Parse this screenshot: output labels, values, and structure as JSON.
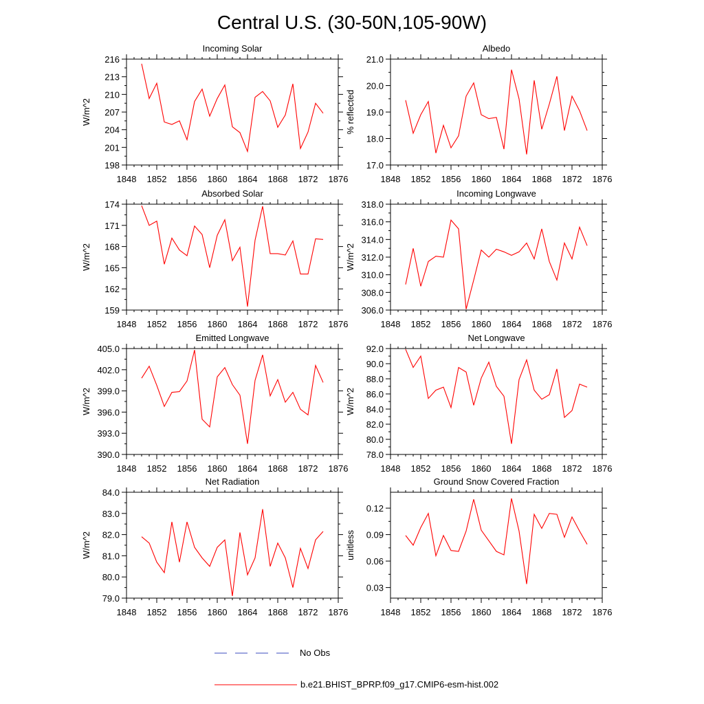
{
  "title": "Central U.S. (30-50N,105-90W)",
  "legend": {
    "items": [
      {
        "label": "No Obs",
        "color": "#3b4bbf",
        "style": "dashed"
      },
      {
        "label": "b.e21.BHIST_BPRP.f09_g17.CMIP6-esm-hist.002",
        "color": "#ff0000",
        "style": "solid"
      }
    ]
  },
  "chart_data": [
    {
      "type": "line",
      "title": "Incoming Solar",
      "ylabel": "W/m^2",
      "xlabel": "",
      "xlim": [
        1848,
        1876
      ],
      "xticks": [
        "1848",
        "1852",
        "1856",
        "1860",
        "1864",
        "1868",
        "1872",
        "1876"
      ],
      "ylim": [
        198,
        216
      ],
      "yticks": [
        "198",
        "201",
        "204",
        "207",
        "210",
        "213",
        "216"
      ],
      "x": [
        1850,
        1851,
        1852,
        1853,
        1854,
        1855,
        1856,
        1857,
        1858,
        1859,
        1860,
        1861,
        1862,
        1863,
        1864,
        1865,
        1866,
        1867,
        1868,
        1869,
        1870,
        1871,
        1872,
        1873,
        1874
      ],
      "series": [
        {
          "name": "b.e21.BHIST_BPRP.f09_g17.CMIP6-esm-hist.002",
          "color": "#ff0000",
          "values": [
            215.2,
            209.3,
            211.9,
            205.3,
            204.9,
            205.5,
            202.3,
            208.8,
            210.9,
            206.3,
            209.3,
            211.6,
            204.5,
            203.5,
            200.3,
            209.5,
            210.5,
            208.9,
            204.4,
            206.5,
            211.8,
            200.8,
            203.6,
            208.5,
            206.8
          ]
        }
      ]
    },
    {
      "type": "line",
      "title": "Albedo",
      "ylabel": "% reflected",
      "xlabel": "",
      "xlim": [
        1848,
        1876
      ],
      "xticks": [
        "1848",
        "1852",
        "1856",
        "1860",
        "1864",
        "1868",
        "1872",
        "1876"
      ],
      "ylim": [
        17.0,
        21.0
      ],
      "yticks": [
        "17.0",
        "18.0",
        "19.0",
        "20.0",
        "21.0"
      ],
      "x": [
        1850,
        1851,
        1852,
        1853,
        1854,
        1855,
        1856,
        1857,
        1858,
        1859,
        1860,
        1861,
        1862,
        1863,
        1864,
        1865,
        1866,
        1867,
        1868,
        1869,
        1870,
        1871,
        1872,
        1873,
        1874
      ],
      "series": [
        {
          "name": "b.e21.BHIST_BPRP.f09_g17.CMIP6-esm-hist.002",
          "color": "#ff0000",
          "values": [
            19.45,
            18.2,
            18.9,
            19.4,
            17.45,
            18.5,
            17.65,
            18.1,
            19.6,
            20.1,
            18.9,
            18.75,
            18.8,
            17.6,
            20.6,
            19.5,
            17.4,
            20.2,
            18.35,
            19.3,
            20.35,
            18.3,
            19.6,
            19.05,
            18.3
          ]
        }
      ]
    },
    {
      "type": "line",
      "title": "Absorbed Solar",
      "ylabel": "W/m^2",
      "xlabel": "",
      "xlim": [
        1848,
        1876
      ],
      "xticks": [
        "1848",
        "1852",
        "1856",
        "1860",
        "1864",
        "1868",
        "1872",
        "1876"
      ],
      "ylim": [
        159,
        174
      ],
      "yticks": [
        "159",
        "162",
        "165",
        "168",
        "171",
        "174"
      ],
      "x": [
        1850,
        1851,
        1852,
        1853,
        1854,
        1855,
        1856,
        1857,
        1858,
        1859,
        1860,
        1861,
        1862,
        1863,
        1864,
        1865,
        1866,
        1867,
        1868,
        1869,
        1870,
        1871,
        1872,
        1873,
        1874
      ],
      "series": [
        {
          "name": "b.e21.BHIST_BPRP.f09_g17.CMIP6-esm-hist.002",
          "color": "#ff0000",
          "values": [
            173.8,
            171.0,
            171.6,
            165.5,
            169.2,
            167.5,
            166.7,
            170.9,
            169.7,
            165.0,
            169.6,
            171.8,
            166.0,
            167.9,
            159.5,
            168.9,
            173.7,
            167.0,
            167.0,
            166.8,
            168.8,
            164.1,
            164.1,
            169.1,
            169.0
          ]
        }
      ]
    },
    {
      "type": "line",
      "title": "Incoming Longwave",
      "ylabel": "W/m^2",
      "xlabel": "",
      "xlim": [
        1848,
        1876
      ],
      "xticks": [
        "1848",
        "1852",
        "1856",
        "1860",
        "1864",
        "1868",
        "1872",
        "1876"
      ],
      "ylim": [
        306.0,
        318.0
      ],
      "yticks": [
        "306.0",
        "308.0",
        "310.0",
        "312.0",
        "314.0",
        "316.0",
        "318.0"
      ],
      "x": [
        1850,
        1851,
        1852,
        1853,
        1854,
        1855,
        1856,
        1857,
        1858,
        1859,
        1860,
        1861,
        1862,
        1863,
        1864,
        1865,
        1866,
        1867,
        1868,
        1869,
        1870,
        1871,
        1872,
        1873,
        1874
      ],
      "series": [
        {
          "name": "b.e21.BHIST_BPRP.f09_g17.CMIP6-esm-hist.002",
          "color": "#ff0000",
          "values": [
            308.9,
            313.0,
            308.7,
            311.5,
            312.1,
            312.0,
            316.2,
            315.2,
            306.1,
            309.4,
            312.8,
            312.0,
            312.9,
            312.6,
            312.2,
            312.6,
            313.6,
            311.8,
            315.2,
            311.5,
            309.4,
            313.6,
            311.8,
            315.4,
            313.3
          ]
        }
      ]
    },
    {
      "type": "line",
      "title": "Emitted Longwave",
      "ylabel": "W/m^2",
      "xlabel": "",
      "xlim": [
        1848,
        1876
      ],
      "xticks": [
        "1848",
        "1852",
        "1856",
        "1860",
        "1864",
        "1868",
        "1872",
        "1876"
      ],
      "ylim": [
        390.0,
        405.0
      ],
      "yticks": [
        "390.0",
        "393.0",
        "396.0",
        "399.0",
        "402.0",
        "405.0"
      ],
      "x": [
        1850,
        1851,
        1852,
        1853,
        1854,
        1855,
        1856,
        1857,
        1858,
        1859,
        1860,
        1861,
        1862,
        1863,
        1864,
        1865,
        1866,
        1867,
        1868,
        1869,
        1870,
        1871,
        1872,
        1873,
        1874
      ],
      "series": [
        {
          "name": "b.e21.BHIST_BPRP.f09_g17.CMIP6-esm-hist.002",
          "color": "#ff0000",
          "values": [
            400.8,
            402.5,
            399.8,
            396.8,
            398.8,
            398.9,
            400.4,
            404.8,
            395.0,
            393.9,
            401.0,
            402.3,
            399.9,
            398.4,
            391.5,
            400.5,
            404.1,
            398.3,
            400.6,
            397.4,
            398.8,
            396.4,
            395.6,
            402.6,
            400.2
          ]
        }
      ]
    },
    {
      "type": "line",
      "title": "Net Longwave",
      "ylabel": "W/m^2",
      "xlabel": "",
      "xlim": [
        1848,
        1876
      ],
      "xticks": [
        "1848",
        "1852",
        "1856",
        "1860",
        "1864",
        "1868",
        "1872",
        "1876"
      ],
      "ylim": [
        78.0,
        92.0
      ],
      "yticks": [
        "78.0",
        "80.0",
        "82.0",
        "84.0",
        "86.0",
        "88.0",
        "90.0",
        "92.0"
      ],
      "x": [
        1850,
        1851,
        1852,
        1853,
        1854,
        1855,
        1856,
        1857,
        1858,
        1859,
        1860,
        1861,
        1862,
        1863,
        1864,
        1865,
        1866,
        1867,
        1868,
        1869,
        1870,
        1871,
        1872,
        1873,
        1874
      ],
      "series": [
        {
          "name": "b.e21.BHIST_BPRP.f09_g17.CMIP6-esm-hist.002",
          "color": "#ff0000",
          "values": [
            91.9,
            89.5,
            91.0,
            85.4,
            86.5,
            86.9,
            84.2,
            89.5,
            88.9,
            84.5,
            88.1,
            90.2,
            87.0,
            85.7,
            79.4,
            87.9,
            90.5,
            86.5,
            85.3,
            85.9,
            89.3,
            82.9,
            83.8,
            87.3,
            86.9
          ]
        }
      ]
    },
    {
      "type": "line",
      "title": "Net Radiation",
      "ylabel": "W/m^2",
      "xlabel": "",
      "xlim": [
        1848,
        1876
      ],
      "xticks": [
        "1848",
        "1852",
        "1856",
        "1860",
        "1864",
        "1868",
        "1872",
        "1876"
      ],
      "ylim": [
        79.0,
        84.0
      ],
      "yticks": [
        "79.0",
        "80.0",
        "81.0",
        "82.0",
        "83.0",
        "84.0"
      ],
      "x": [
        1850,
        1851,
        1852,
        1853,
        1854,
        1855,
        1856,
        1857,
        1858,
        1859,
        1860,
        1861,
        1862,
        1863,
        1864,
        1865,
        1866,
        1867,
        1868,
        1869,
        1870,
        1871,
        1872,
        1873,
        1874
      ],
      "series": [
        {
          "name": "b.e21.BHIST_BPRP.f09_g17.CMIP6-esm-hist.002",
          "color": "#ff0000",
          "values": [
            81.9,
            81.6,
            80.7,
            80.2,
            82.6,
            80.7,
            82.6,
            81.4,
            80.9,
            80.5,
            81.4,
            81.75,
            79.1,
            82.1,
            80.1,
            80.9,
            83.2,
            80.5,
            81.6,
            80.9,
            79.5,
            81.35,
            80.4,
            81.75,
            82.15
          ]
        }
      ]
    },
    {
      "type": "line",
      "title": "Ground Snow Covered Fraction",
      "ylabel": "unitless",
      "xlabel": "",
      "xlim": [
        1848,
        1876
      ],
      "xticks": [
        "1848",
        "1852",
        "1856",
        "1860",
        "1864",
        "1868",
        "1872",
        "1876"
      ],
      "ylim": [
        0.018,
        0.138
      ],
      "yticks": [
        "0.03",
        "0.06",
        "0.09",
        "0.12"
      ],
      "ytick_values": [
        0.03,
        0.06,
        0.09,
        0.12
      ],
      "x": [
        1850,
        1851,
        1852,
        1853,
        1854,
        1855,
        1856,
        1857,
        1858,
        1859,
        1860,
        1861,
        1862,
        1863,
        1864,
        1865,
        1866,
        1867,
        1868,
        1869,
        1870,
        1871,
        1872,
        1873,
        1874
      ],
      "series": [
        {
          "name": "b.e21.BHIST_BPRP.f09_g17.CMIP6-esm-hist.002",
          "color": "#ff0000",
          "values": [
            0.089,
            0.078,
            0.098,
            0.114,
            0.066,
            0.089,
            0.072,
            0.071,
            0.094,
            0.13,
            0.095,
            0.083,
            0.071,
            0.067,
            0.131,
            0.094,
            0.034,
            0.113,
            0.097,
            0.114,
            0.113,
            0.087,
            0.11,
            0.094,
            0.079
          ]
        }
      ]
    }
  ]
}
